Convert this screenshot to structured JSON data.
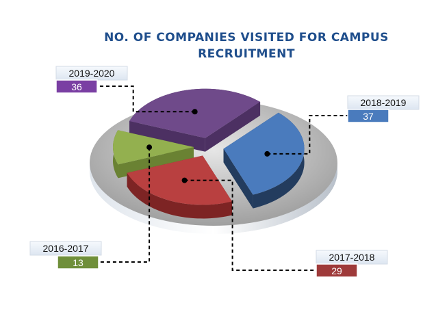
{
  "chart_data": {
    "type": "pie",
    "title_lines": [
      "NO. OF COMPANIES VISITED FOR CAMPUS",
      "RECRUITMENT"
    ],
    "slices": [
      {
        "category": "2019-2020",
        "value": 36,
        "color": "#6f4a8a",
        "dark": "#4c3062",
        "label_color": "#7a3fa3"
      },
      {
        "category": "2018-2019",
        "value": 37,
        "color": "#4a7bbd",
        "dark": "#233c5e",
        "label_color": "#4a7bbd"
      },
      {
        "category": "2017-2018",
        "value": 29,
        "color": "#b94040",
        "dark": "#7d2424",
        "label_color": "#9e3a3a"
      },
      {
        "category": "2016-2017",
        "value": 13,
        "color": "#93b04f",
        "dark": "#6a8233",
        "label_color": "#6f8f3a"
      }
    ]
  }
}
